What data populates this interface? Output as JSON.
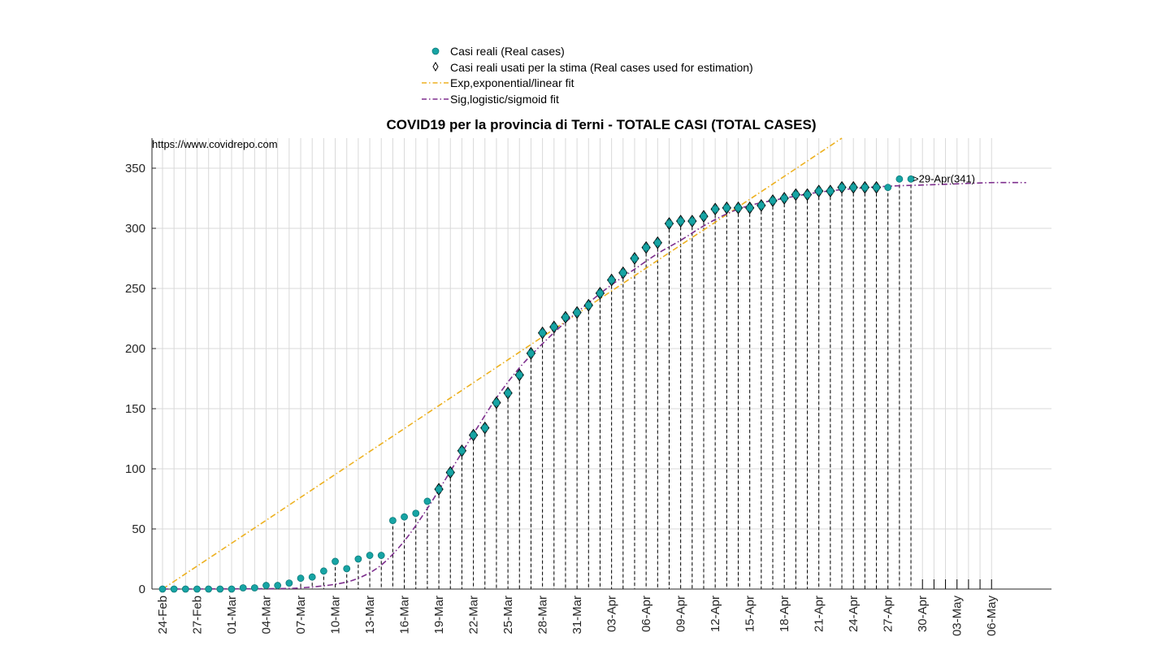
{
  "chart_data": {
    "type": "scatter",
    "title": "COVID19 per la provincia di Terni - TOTALE CASI (TOTAL CASES)",
    "source_note": "https://www.covidrepo.com",
    "annotation": ">29-Apr(341)",
    "xlabel": "",
    "ylabel": "",
    "ylim": [
      0,
      375
    ],
    "yticks": [
      0,
      50,
      100,
      150,
      200,
      250,
      300,
      350
    ],
    "x_start_date": "24-Feb",
    "xticks": [
      "24-Feb",
      "27-Feb",
      "01-Mar",
      "04-Mar",
      "07-Mar",
      "10-Mar",
      "13-Mar",
      "16-Mar",
      "19-Mar",
      "22-Mar",
      "25-Mar",
      "28-Mar",
      "31-Mar",
      "03-Apr",
      "06-Apr",
      "09-Apr",
      "12-Apr",
      "15-Apr",
      "18-Apr",
      "21-Apr",
      "24-Apr",
      "27-Apr",
      "30-Apr",
      "03-May",
      "06-May"
    ],
    "grid": true,
    "legend_position": "top-center",
    "legend": [
      {
        "label": "Casi reali (Real cases)",
        "marker": "circle",
        "color": "#17a4a4"
      },
      {
        "label": "Casi reali usati per la stima (Real cases used for estimation)",
        "marker": "diamond",
        "color": "#000000"
      },
      {
        "label": "Exp,exponential/linear fit",
        "marker": "dash-dot",
        "color": "#edb120"
      },
      {
        "label": "Sig,logistic/sigmoid fit",
        "marker": "dash-dot",
        "color": "#7e2f8e"
      }
    ],
    "series": [
      {
        "name": "Casi reali (Real cases)",
        "dates": [
          "24-Feb",
          "25-Feb",
          "26-Feb",
          "27-Feb",
          "28-Feb",
          "29-Feb",
          "01-Mar",
          "02-Mar",
          "03-Mar",
          "04-Mar",
          "05-Mar",
          "06-Mar",
          "07-Mar",
          "08-Mar",
          "09-Mar",
          "10-Mar",
          "11-Mar",
          "12-Mar",
          "13-Mar",
          "14-Mar",
          "15-Mar",
          "16-Mar",
          "17-Mar",
          "18-Mar",
          "19-Mar",
          "20-Mar",
          "21-Mar",
          "22-Mar",
          "23-Mar",
          "24-Mar",
          "25-Mar",
          "26-Mar",
          "27-Mar",
          "28-Mar",
          "29-Mar",
          "30-Mar",
          "31-Mar",
          "01-Apr",
          "02-Apr",
          "03-Apr",
          "04-Apr",
          "05-Apr",
          "06-Apr",
          "07-Apr",
          "08-Apr",
          "09-Apr",
          "10-Apr",
          "11-Apr",
          "12-Apr",
          "13-Apr",
          "14-Apr",
          "15-Apr",
          "16-Apr",
          "17-Apr",
          "18-Apr",
          "19-Apr",
          "20-Apr",
          "21-Apr",
          "22-Apr",
          "23-Apr",
          "24-Apr",
          "25-Apr",
          "26-Apr",
          "27-Apr",
          "28-Apr",
          "29-Apr"
        ],
        "values": [
          0,
          0,
          0,
          0,
          0,
          0,
          0,
          1,
          1,
          3,
          3,
          5,
          9,
          10,
          15,
          23,
          17,
          25,
          28,
          28,
          57,
          60,
          63,
          73,
          83,
          97,
          115,
          128,
          134,
          155,
          163,
          178,
          196,
          213,
          218,
          226,
          230,
          236,
          246,
          257,
          263,
          275,
          284,
          288,
          304,
          306,
          306,
          310,
          316,
          317,
          317,
          317,
          319,
          323,
          325,
          328,
          328,
          331,
          331,
          334,
          334,
          334,
          334,
          334,
          341,
          341
        ]
      },
      {
        "name": "Casi reali usati per la stima (Real cases used for estimation)",
        "dates": [
          "19-Mar",
          "20-Mar",
          "21-Mar",
          "22-Mar",
          "23-Mar",
          "24-Mar",
          "25-Mar",
          "26-Mar",
          "27-Mar",
          "28-Mar",
          "29-Mar",
          "30-Mar",
          "31-Mar",
          "01-Apr",
          "02-Apr",
          "03-Apr",
          "04-Apr",
          "05-Apr",
          "06-Apr",
          "07-Apr",
          "08-Apr",
          "09-Apr",
          "10-Apr",
          "11-Apr",
          "12-Apr",
          "13-Apr",
          "14-Apr",
          "15-Apr",
          "16-Apr",
          "17-Apr",
          "18-Apr",
          "19-Apr",
          "20-Apr",
          "21-Apr",
          "22-Apr",
          "23-Apr",
          "24-Apr",
          "25-Apr",
          "26-Apr"
        ],
        "values": [
          83,
          97,
          115,
          128,
          134,
          155,
          163,
          178,
          196,
          213,
          218,
          226,
          230,
          236,
          246,
          257,
          263,
          275,
          284,
          288,
          304,
          306,
          306,
          310,
          316,
          317,
          317,
          317,
          319,
          323,
          325,
          328,
          328,
          331,
          331,
          334,
          334,
          334,
          334
        ]
      },
      {
        "name": "Exp,exponential/linear fit",
        "line": [
          [
            "24-Feb",
            0
          ],
          [
            "23-Apr",
            375
          ]
        ]
      },
      {
        "name": "Sig,logistic/sigmoid fit",
        "dates": [
          "24-Feb",
          "04-Mar",
          "07-Mar",
          "10-Mar",
          "12-Mar",
          "14-Mar",
          "16-Mar",
          "18-Mar",
          "20-Mar",
          "22-Mar",
          "24-Mar",
          "26-Mar",
          "28-Mar",
          "30-Mar",
          "01-Apr",
          "03-Apr",
          "05-Apr",
          "07-Apr",
          "09-Apr",
          "11-Apr",
          "13-Apr",
          "15-Apr",
          "18-Apr",
          "21-Apr",
          "24-Apr",
          "27-Apr",
          "30-Apr",
          "03-May",
          "06-May",
          "09-May"
        ],
        "values": [
          0,
          0.3,
          1,
          4,
          9,
          20,
          40,
          67,
          98,
          129,
          159,
          184,
          204,
          222,
          238,
          253,
          266,
          279,
          290,
          302,
          312,
          319,
          325,
          330,
          333,
          335,
          336,
          337,
          338,
          338
        ]
      }
    ]
  }
}
